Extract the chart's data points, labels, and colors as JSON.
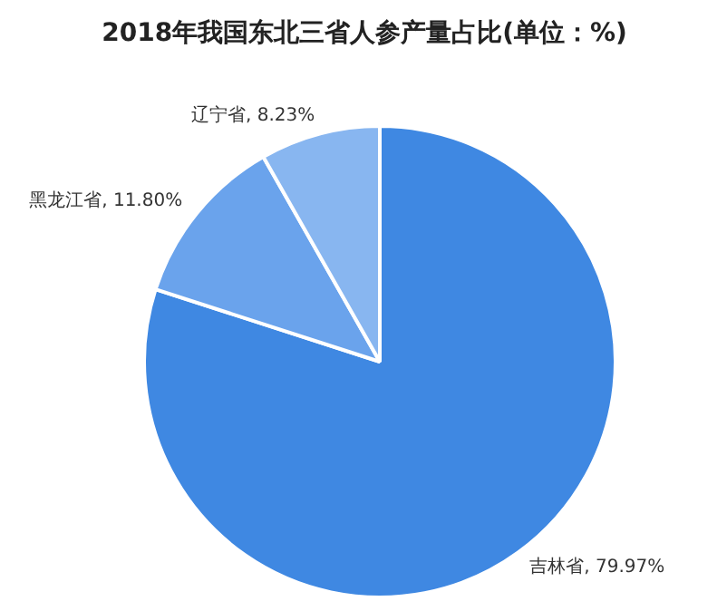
{
  "chart_data": {
    "type": "pie",
    "title": "2018年我国东北三省人参产量占比(单位：%)",
    "categories": [
      "吉林省",
      "黑龙江省",
      "辽宁省"
    ],
    "values": [
      79.97,
      11.8,
      8.23
    ],
    "value_labels": [
      "79.97%",
      "11.80%",
      "8.23%"
    ],
    "colors": [
      "#3f88e2",
      "#6aa3ec",
      "#88b6f0"
    ],
    "legend": false
  }
}
